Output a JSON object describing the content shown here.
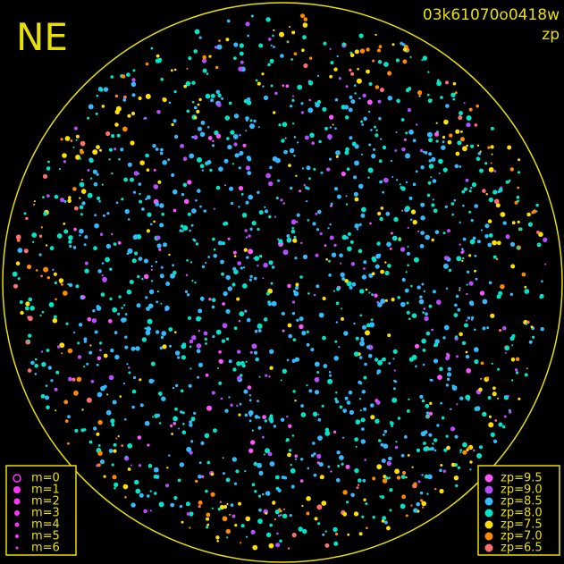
{
  "header": {
    "corner_label": "NE",
    "image_id": "03k61070o0418w",
    "color_key": "zp"
  },
  "magnitude_legend": {
    "items": [
      {
        "label": "m=0",
        "color": "#ff33ff"
      },
      {
        "label": "m=1",
        "color": "#ff33ff"
      },
      {
        "label": "m=2",
        "color": "#ff33ff"
      },
      {
        "label": "m=3",
        "color": "#ff33ff"
      },
      {
        "label": "m=4",
        "color": "#ff33ff"
      },
      {
        "label": "m=5",
        "color": "#ff33ff"
      },
      {
        "label": "m=6",
        "color": "#ff33ff"
      }
    ]
  },
  "zp_legend": {
    "items": [
      {
        "label": "zp=9.5",
        "color": "#ff55ff"
      },
      {
        "label": "zp=9.0",
        "color": "#b84cff"
      },
      {
        "label": "zp=8.5",
        "color": "#33bbff"
      },
      {
        "label": "zp=8.0",
        "color": "#00e6c8"
      },
      {
        "label": "zp=7.5",
        "color": "#ffe000"
      },
      {
        "label": "zp=7.0",
        "color": "#ff8a00"
      },
      {
        "label": "zp=6.5",
        "color": "#ff6f6f"
      }
    ]
  }
}
